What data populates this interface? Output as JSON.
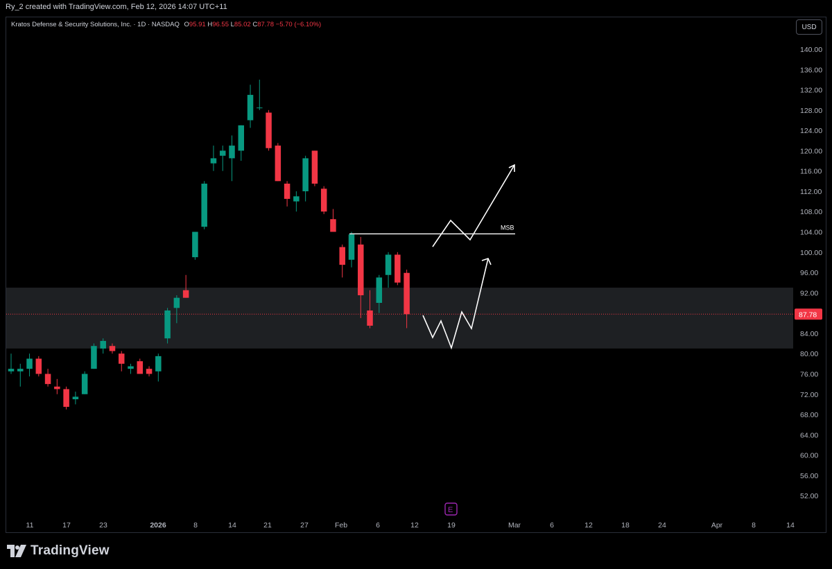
{
  "header": {
    "created_text": "Ry_2 created with TradingView.com, Feb 12, 2026 14:07 UTC+11"
  },
  "legend": {
    "symbol": "Kratos Defense & Security Solutions, Inc. · 1D · NASDAQ",
    "open_label": "O",
    "open": "95.91",
    "high_label": "H",
    "high": "96.55",
    "low_label": "L",
    "low": "85.02",
    "close_label": "C",
    "close": "87.78",
    "change": "−5.70 (−6.10%)"
  },
  "currency_button": "USD",
  "footer": {
    "brand": "TradingView"
  },
  "colors": {
    "up": "#089981",
    "down": "#f23645",
    "zone": "#1e2023",
    "annotation": "#ffffff",
    "earnings": "#9c27b0"
  },
  "chart_data": {
    "type": "candlestick",
    "y_axis": {
      "min": 50,
      "max": 142,
      "ticks": [
        140,
        136,
        132,
        128,
        124,
        120,
        116,
        112,
        108,
        104,
        100,
        96,
        92,
        88,
        84,
        80,
        76,
        72,
        68,
        64,
        60,
        56,
        52
      ]
    },
    "x_axis": {
      "tick_labels": [
        "11",
        "17",
        "23",
        "2026",
        "8",
        "14",
        "21",
        "27",
        "Feb",
        "6",
        "12",
        "19",
        "Mar",
        "6",
        "12",
        "18",
        "24",
        "Apr",
        "8",
        "14"
      ]
    },
    "last_price": {
      "value": 87.78,
      "label": "87.78"
    },
    "support_zone": {
      "from": 81.0,
      "to": 93.0
    },
    "msb_level": {
      "value": 103.6,
      "label": "MSB"
    },
    "earnings_marker": "E",
    "candles": [
      {
        "o": 76.5,
        "h": 80,
        "l": 76,
        "c": 77
      },
      {
        "o": 76.5,
        "h": 78,
        "l": 73.5,
        "c": 77
      },
      {
        "o": 77,
        "h": 80,
        "l": 75.5,
        "c": 79
      },
      {
        "o": 79,
        "h": 79.5,
        "l": 75.5,
        "c": 76
      },
      {
        "o": 76,
        "h": 77,
        "l": 73.5,
        "c": 74
      },
      {
        "o": 73.5,
        "h": 75,
        "l": 72,
        "c": 73
      },
      {
        "o": 73,
        "h": 73.5,
        "l": 69,
        "c": 69.5
      },
      {
        "o": 71,
        "h": 72.5,
        "l": 70,
        "c": 71.5
      },
      {
        "o": 72,
        "h": 76.5,
        "l": 72,
        "c": 76
      },
      {
        "o": 77,
        "h": 82,
        "l": 77,
        "c": 81.5
      },
      {
        "o": 81,
        "h": 83,
        "l": 80,
        "c": 82.5
      },
      {
        "o": 81.5,
        "h": 82,
        "l": 80,
        "c": 80.5
      },
      {
        "o": 80,
        "h": 80.5,
        "l": 76.5,
        "c": 78
      },
      {
        "o": 77,
        "h": 78,
        "l": 76,
        "c": 77.5
      },
      {
        "o": 78.5,
        "h": 79,
        "l": 76,
        "c": 76
      },
      {
        "o": 77,
        "h": 77.5,
        "l": 75.5,
        "c": 76
      },
      {
        "o": 76.5,
        "h": 80,
        "l": 74.5,
        "c": 79.5
      },
      {
        "o": 83,
        "h": 89,
        "l": 82,
        "c": 88.5
      },
      {
        "o": 89,
        "h": 91.5,
        "l": 86,
        "c": 91
      },
      {
        "o": 92.5,
        "h": 95.5,
        "l": 91,
        "c": 91
      },
      {
        "o": 99,
        "h": 104,
        "l": 98.5,
        "c": 104
      },
      {
        "o": 105,
        "h": 114,
        "l": 104.5,
        "c": 113.5
      },
      {
        "o": 117.5,
        "h": 121,
        "l": 116,
        "c": 118.5
      },
      {
        "o": 119,
        "h": 121,
        "l": 116,
        "c": 120
      },
      {
        "o": 118.5,
        "h": 123,
        "l": 114,
        "c": 121
      },
      {
        "o": 120,
        "h": 125,
        "l": 118,
        "c": 125
      },
      {
        "o": 126,
        "h": 133,
        "l": 124.5,
        "c": 131
      },
      {
        "o": 128.5,
        "h": 134,
        "l": 128,
        "c": 128.5
      },
      {
        "o": 127.5,
        "h": 128,
        "l": 120,
        "c": 120.5
      },
      {
        "o": 121,
        "h": 121.5,
        "l": 114,
        "c": 114
      },
      {
        "o": 113.5,
        "h": 114,
        "l": 109,
        "c": 110.5
      },
      {
        "o": 110,
        "h": 112,
        "l": 108,
        "c": 111
      },
      {
        "o": 112,
        "h": 119,
        "l": 110,
        "c": 118.5
      },
      {
        "o": 120,
        "h": 120,
        "l": 113,
        "c": 113.5
      },
      {
        "o": 112.5,
        "h": 113,
        "l": 107.5,
        "c": 108
      },
      {
        "o": 106.5,
        "h": 108.5,
        "l": 104,
        "c": 104
      },
      {
        "o": 101,
        "h": 101.5,
        "l": 95,
        "c": 97.5
      },
      {
        "o": 98.5,
        "h": 104,
        "l": 97,
        "c": 103.5
      },
      {
        "o": 101.5,
        "h": 103,
        "l": 87,
        "c": 91.5
      },
      {
        "o": 88.5,
        "h": 92.5,
        "l": 85,
        "c": 85.5
      },
      {
        "o": 90,
        "h": 95.5,
        "l": 88,
        "c": 95
      },
      {
        "o": 95.5,
        "h": 100,
        "l": 93,
        "c": 99.5
      },
      {
        "o": 99.5,
        "h": 100,
        "l": 93.5,
        "c": 94
      },
      {
        "o": 95.91,
        "h": 96.55,
        "l": 85.02,
        "c": 87.78
      }
    ]
  }
}
